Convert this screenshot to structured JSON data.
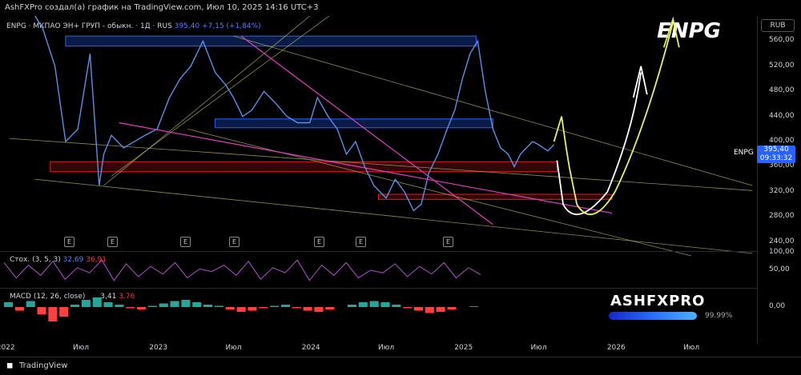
{
  "header": {
    "attribution": "AshFXPro создал(а) график на TradingView.com, Июл 10, 2025 14:16 UTC+3"
  },
  "legend": {
    "symbol": "ENPG · МКПАО ЭН+ ГРУП - обыкн. · 1Д · RUS",
    "price": "395,40",
    "change": "+7,15 (+1,84%)"
  },
  "big_title": "ENPG",
  "currency": "RUB",
  "last_price": {
    "ticker": "ENPG",
    "price": "395,40",
    "countdown": "09:33:32"
  },
  "stoch": {
    "label": "Стох. (3, 5, 3)",
    "k": "32,69",
    "d": "36,91",
    "axis": [
      "100,00",
      "50,00"
    ]
  },
  "macd": {
    "label": "MACD (12, 26, close)",
    "v1": "3,41",
    "v2": "3,76",
    "axis": "0,00"
  },
  "brand": {
    "name": "ASHFXPRO",
    "percent": "99.99%"
  },
  "footer": {
    "logo_text": "TradingView"
  },
  "earnings_marker": "E",
  "colors": {
    "price_line": "#5b8fe8",
    "blue_zone": "#2962ff",
    "red_zone": "#e02020",
    "magenta": "#e040c0",
    "yellow": "#e8f060",
    "white": "#ffffff",
    "stoch": "#b050d0",
    "macd": "#ff4040"
  },
  "chart_data": {
    "type": "line",
    "title": "",
    "y_axis": {
      "ticks": [
        240,
        280,
        320,
        360,
        400,
        440,
        480,
        520,
        560
      ],
      "tick_labels": [
        "240,00",
        "280,00",
        "320,00",
        "360,00",
        "400,00",
        "440,00",
        "480,00",
        "520,00",
        "560,00"
      ],
      "ylim": [
        218,
        600
      ]
    },
    "x_axis": {
      "labels": [
        "2022",
        "Июл",
        "2023",
        "Июл",
        "2024",
        "Июл",
        "2025",
        "Июл",
        "2026",
        "Июл"
      ],
      "positions": [
        2022.0,
        2022.5,
        2023.0,
        2023.5,
        2024.0,
        2024.5,
        2025.0,
        2025.5,
        2026.0,
        2026.5
      ],
      "xlim": [
        2021.97,
        2026.93
      ]
    },
    "series": [
      {
        "x": [
          2022.0,
          2022.15,
          2022.25,
          2022.33,
          2022.4,
          2022.48,
          2022.56,
          2022.62,
          2022.65,
          2022.7,
          2022.78,
          2022.85,
          2022.92,
          2023.0,
          2023.08,
          2023.15,
          2023.22,
          2023.3,
          2023.38,
          2023.45,
          2023.5,
          2023.56,
          2023.62,
          2023.7,
          2023.78,
          2023.85,
          2023.92,
          2024.0,
          2024.05,
          2024.12,
          2024.18,
          2024.24,
          2024.3,
          2024.36,
          2024.42,
          2024.5,
          2024.56,
          2024.62,
          2024.68,
          2024.73,
          2024.78,
          2024.84,
          2024.9,
          2024.95,
          2025.0,
          2025.05,
          2025.1,
          2025.15,
          2025.2,
          2025.25,
          2025.3,
          2025.34,
          2025.38,
          2025.42,
          2025.46,
          2025.5,
          2025.53,
          2025.56,
          2025.6
        ],
        "values": [
          640,
          620,
          580,
          520,
          400,
          420,
          540,
          330,
          380,
          410,
          390,
          400,
          410,
          420,
          470,
          500,
          520,
          560,
          510,
          490,
          470,
          440,
          450,
          480,
          460,
          440,
          430,
          430,
          470,
          440,
          420,
          380,
          400,
          360,
          330,
          310,
          340,
          320,
          290,
          300,
          350,
          380,
          420,
          450,
          500,
          540,
          560,
          480,
          420,
          390,
          380,
          360,
          380,
          390,
          400,
          395,
          390,
          385,
          395.4
        ]
      }
    ],
    "zones": {
      "blue": [
        [
          552,
          568
        ],
        [
          422,
          436
        ]
      ],
      "red": [
        [
          352,
          368
        ],
        [
          308,
          316
        ]
      ]
    },
    "stoch_values": [
      80,
      20,
      70,
      30,
      85,
      15,
      60,
      40,
      90,
      10,
      75,
      25,
      65,
      35,
      80,
      20,
      55,
      45,
      70,
      30,
      85,
      15,
      60,
      40,
      90,
      10,
      70,
      30,
      80,
      20,
      50,
      40,
      75,
      25,
      65,
      35,
      80,
      20,
      60,
      33
    ],
    "macd_histogram": [
      20,
      -15,
      25,
      -30,
      -60,
      -40,
      10,
      30,
      40,
      20,
      10,
      -5,
      -10,
      5,
      15,
      25,
      30,
      20,
      10,
      5,
      -10,
      -20,
      -15,
      -5,
      5,
      10,
      -5,
      -15,
      -20,
      -10,
      0,
      10,
      20,
      25,
      20,
      10,
      -5,
      -15,
      -25,
      -20,
      -10,
      0,
      3
    ]
  }
}
